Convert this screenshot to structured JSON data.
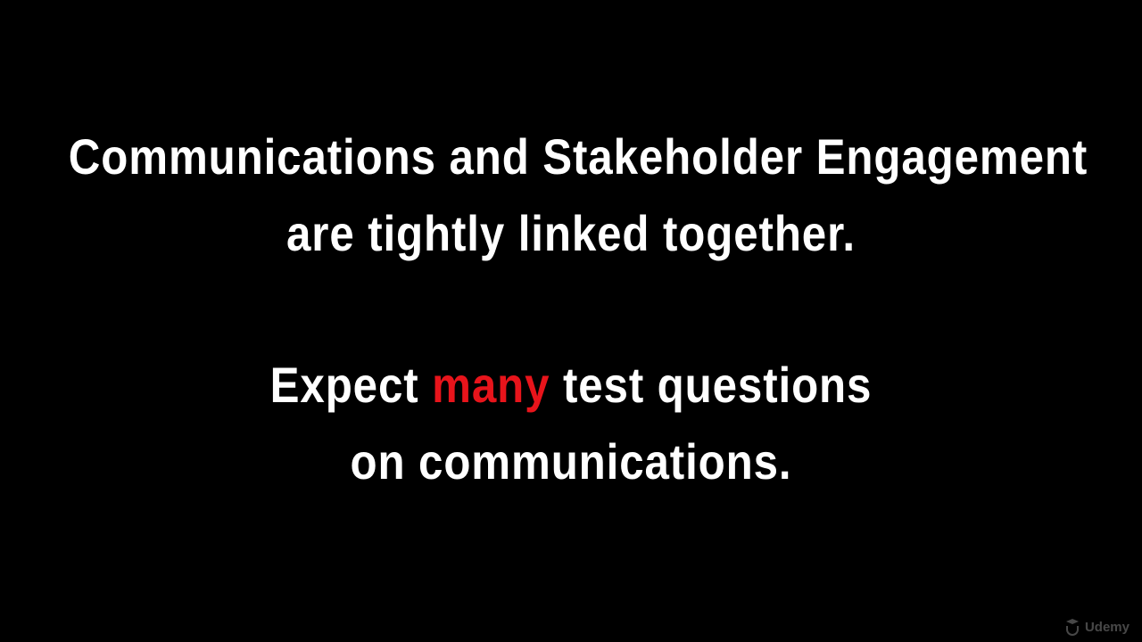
{
  "slide": {
    "headline_line1": "Communications and Stakeholder Engagement",
    "headline_line2": "are tightly linked together.",
    "expect_before": "Expect ",
    "expect_highlight": "many",
    "expect_after": " test questions",
    "expect_line2": "on communications.",
    "highlight_color": "#e8141b"
  },
  "watermark": {
    "icon": "udemy-logo-icon",
    "brand_text": "Udemy"
  }
}
